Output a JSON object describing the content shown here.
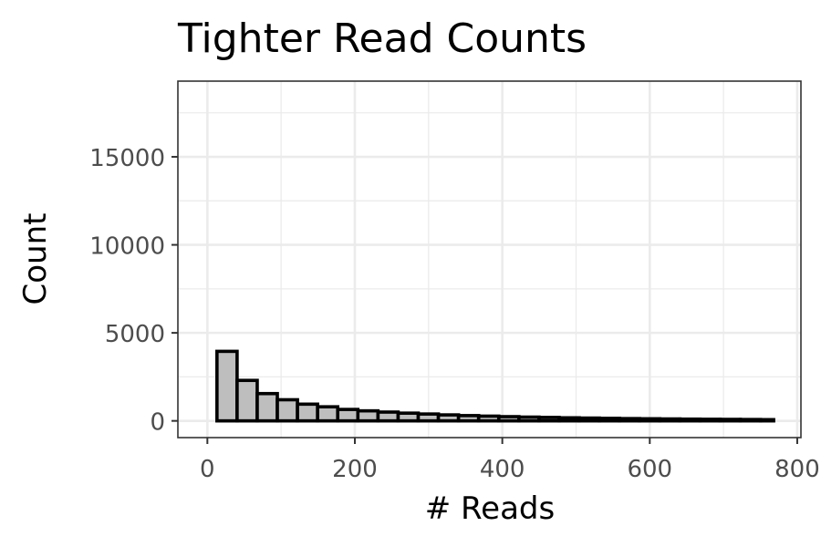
{
  "chart_data": {
    "type": "bar",
    "title": "Tighter Read Counts",
    "xlabel": "# Reads",
    "ylabel": "Count",
    "xlim": [
      -40,
      805
    ],
    "ylim": [
      -950,
      19300
    ],
    "x_ticks": [
      0,
      200,
      400,
      600,
      800
    ],
    "x_tick_labels": [
      "0",
      "200",
      "400",
      "600",
      "800"
    ],
    "y_ticks": [
      0,
      5000,
      10000,
      15000
    ],
    "y_tick_labels": [
      "0",
      "5000",
      "10000",
      "15000"
    ],
    "grid": true,
    "legend": "none",
    "bin_width": 27.3,
    "bins": [
      {
        "start": 13.0,
        "end": 40.3,
        "value": 3950
      },
      {
        "start": 40.3,
        "end": 67.6,
        "value": 2300
      },
      {
        "start": 67.6,
        "end": 94.9,
        "value": 1550
      },
      {
        "start": 94.9,
        "end": 122.2,
        "value": 1200
      },
      {
        "start": 122.2,
        "end": 149.5,
        "value": 950
      },
      {
        "start": 149.5,
        "end": 176.8,
        "value": 800
      },
      {
        "start": 176.8,
        "end": 204.1,
        "value": 650
      },
      {
        "start": 204.1,
        "end": 231.4,
        "value": 570
      },
      {
        "start": 231.4,
        "end": 258.7,
        "value": 500
      },
      {
        "start": 258.7,
        "end": 286.0,
        "value": 440
      },
      {
        "start": 286.0,
        "end": 313.3,
        "value": 390
      },
      {
        "start": 313.3,
        "end": 340.6,
        "value": 340
      },
      {
        "start": 340.6,
        "end": 367.9,
        "value": 300
      },
      {
        "start": 367.9,
        "end": 395.2,
        "value": 270
      },
      {
        "start": 395.2,
        "end": 422.5,
        "value": 240
      },
      {
        "start": 422.5,
        "end": 449.8,
        "value": 215
      },
      {
        "start": 449.8,
        "end": 477.1,
        "value": 195
      },
      {
        "start": 477.1,
        "end": 504.4,
        "value": 175
      },
      {
        "start": 504.4,
        "end": 531.7,
        "value": 160
      },
      {
        "start": 531.7,
        "end": 559.0,
        "value": 145
      },
      {
        "start": 559.0,
        "end": 586.3,
        "value": 130
      },
      {
        "start": 586.3,
        "end": 613.6,
        "value": 120
      },
      {
        "start": 613.6,
        "end": 640.9,
        "value": 110
      },
      {
        "start": 640.9,
        "end": 668.2,
        "value": 100
      },
      {
        "start": 668.2,
        "end": 695.5,
        "value": 92
      },
      {
        "start": 695.5,
        "end": 722.8,
        "value": 85
      },
      {
        "start": 722.8,
        "end": 750.1,
        "value": 78
      },
      {
        "start": 750.1,
        "end": 768.0,
        "value": 70
      }
    ],
    "colors": {
      "bar_fill": "#bebebe",
      "bar_outline": "#000000",
      "grid": "#ebebeb",
      "panel_border": "#333333",
      "tick_text": "#4d4d4d"
    }
  }
}
